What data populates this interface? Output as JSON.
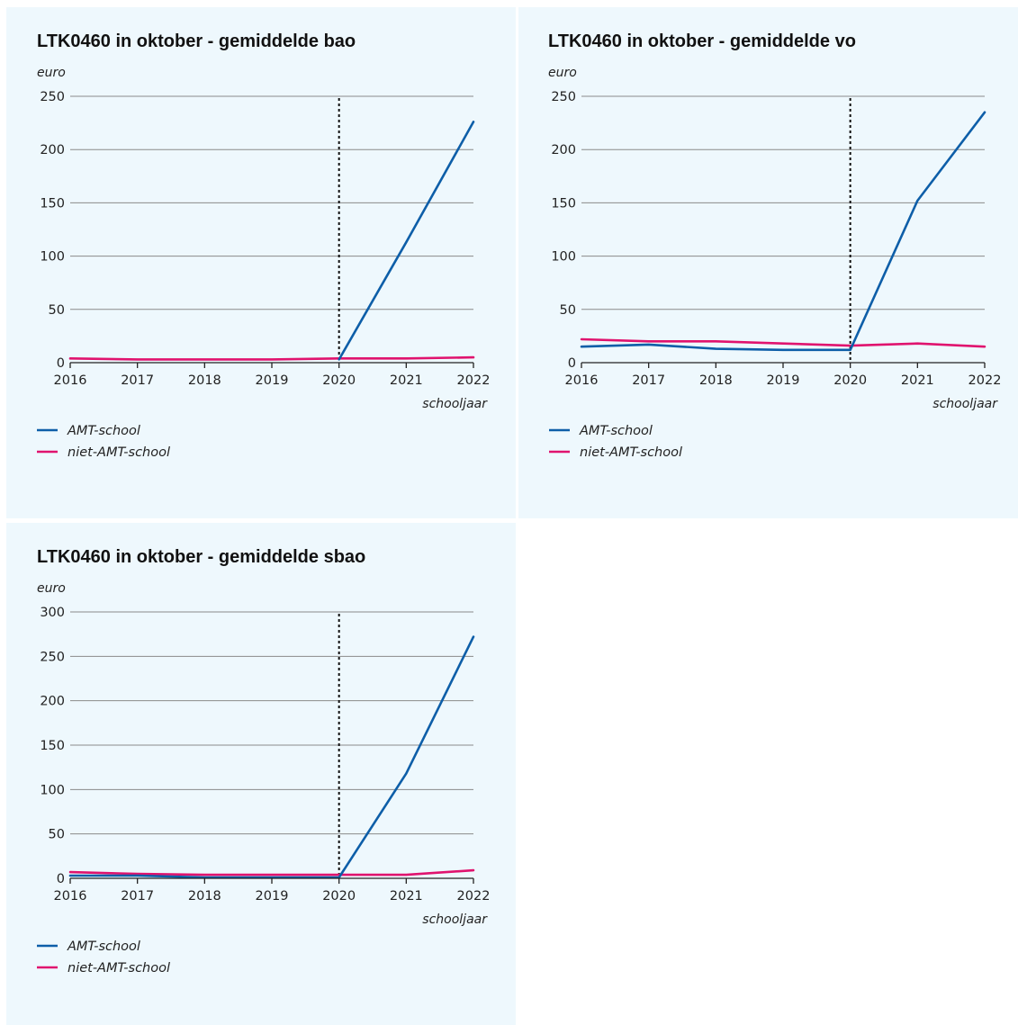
{
  "chart_data": [
    {
      "type": "line",
      "title": "LTK0460 in oktober - gemiddelde bao",
      "ylabel": "euro",
      "xlabel": "schooljaar",
      "x": [
        "2016",
        "2017",
        "2018",
        "2019",
        "2020",
        "2021",
        "2022"
      ],
      "ylim": [
        0,
        250
      ],
      "yticks": [
        0,
        50,
        100,
        150,
        200,
        250
      ],
      "grid": true,
      "legend_position": "bottom-left",
      "reference_line_x": "2020",
      "series": [
        {
          "name": "AMT-school",
          "color": "#0d5ea8",
          "values": [
            null,
            null,
            null,
            null,
            3,
            113,
            226
          ]
        },
        {
          "name": "niet-AMT-school",
          "color": "#e0136e",
          "values": [
            4,
            3,
            3,
            3,
            4,
            4,
            5
          ]
        }
      ]
    },
    {
      "type": "line",
      "title": "LTK0460 in oktober - gemiddelde vo",
      "ylabel": "euro",
      "xlabel": "schooljaar",
      "x": [
        "2016",
        "2017",
        "2018",
        "2019",
        "2020",
        "2021",
        "2022"
      ],
      "ylim": [
        0,
        250
      ],
      "yticks": [
        0,
        50,
        100,
        150,
        200,
        250
      ],
      "grid": true,
      "legend_position": "bottom-left",
      "reference_line_x": "2020",
      "series": [
        {
          "name": "AMT-school",
          "color": "#0d5ea8",
          "values": [
            15,
            17,
            13,
            12,
            12,
            152,
            235
          ]
        },
        {
          "name": "niet-AMT-school",
          "color": "#e0136e",
          "values": [
            22,
            20,
            20,
            18,
            16,
            18,
            15
          ]
        }
      ]
    },
    {
      "type": "line",
      "title": "LTK0460 in oktober - gemiddelde sbao",
      "ylabel": "euro",
      "xlabel": "schooljaar",
      "x": [
        "2016",
        "2017",
        "2018",
        "2019",
        "2020",
        "2021",
        "2022"
      ],
      "ylim": [
        0,
        300
      ],
      "yticks": [
        0,
        50,
        100,
        150,
        200,
        250,
        300
      ],
      "grid": true,
      "legend_position": "bottom-left",
      "reference_line_x": "2020",
      "series": [
        {
          "name": "AMT-school",
          "color": "#0d5ea8",
          "values": [
            3,
            3,
            1,
            1,
            1,
            118,
            272
          ]
        },
        {
          "name": "niet-AMT-school",
          "color": "#e0136e",
          "values": [
            7,
            5,
            4,
            4,
            4,
            4,
            9
          ]
        }
      ]
    }
  ]
}
